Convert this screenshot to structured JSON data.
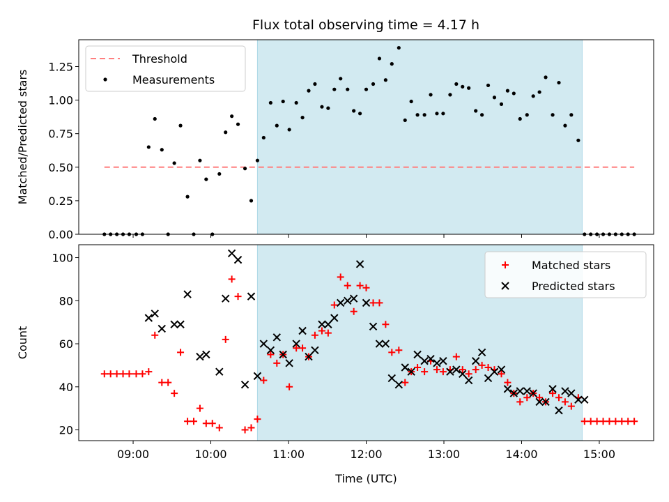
{
  "title": "Flux total observing time = 4.17 h",
  "colors": {
    "threshold": "#ff7f7f",
    "measurement": "#000000",
    "matched": "#ff0000",
    "predicted": "#000000",
    "shade": "#add8e6"
  },
  "chart_data": [
    {
      "type": "scatter",
      "ylabel": "Matched/Predicted stars",
      "xlim_hours": [
        8.3,
        15.7
      ],
      "ylim": [
        0,
        1.45
      ],
      "yticks": [
        0,
        0.25,
        0.5,
        0.75,
        1.0,
        1.25
      ],
      "ytick_labels": [
        "0.00",
        "0.25",
        "0.50",
        "0.75",
        "1.00",
        "1.25"
      ],
      "shaded_span_hours": [
        10.6,
        14.78
      ],
      "legend_position": "top-left",
      "legend": [
        "Threshold",
        "Measurements"
      ],
      "threshold": {
        "value": 0.5,
        "x_hours": [
          8.63,
          15.45
        ]
      },
      "series": [
        {
          "name": "Measurements",
          "x_hours": [
            8.63,
            8.71,
            8.79,
            8.87,
            8.95,
            9.04,
            9.12,
            9.2,
            9.28,
            9.37,
            9.45,
            9.53,
            9.61,
            9.7,
            9.78,
            9.86,
            9.94,
            10.02,
            10.11,
            10.19,
            10.27,
            10.35,
            10.44,
            10.52,
            10.6,
            10.68,
            10.77,
            10.85,
            10.93,
            11.01,
            11.1,
            11.18,
            11.26,
            11.34,
            11.43,
            11.51,
            11.59,
            11.67,
            11.76,
            11.84,
            11.92,
            12.0,
            12.09,
            12.17,
            12.25,
            12.33,
            12.42,
            12.5,
            12.58,
            12.66,
            12.75,
            12.83,
            12.91,
            12.99,
            13.08,
            13.16,
            13.24,
            13.32,
            13.41,
            13.49,
            13.57,
            13.65,
            13.74,
            13.82,
            13.9,
            13.98,
            14.07,
            14.15,
            14.23,
            14.31,
            14.4,
            14.48,
            14.56,
            14.64,
            14.73,
            14.81,
            14.89,
            14.97,
            15.05,
            15.13,
            15.21,
            15.29,
            15.37,
            15.45
          ],
          "values": [
            0,
            0,
            0,
            0,
            0,
            0,
            0,
            0.65,
            0.86,
            0.63,
            0,
            0.53,
            0.81,
            0.28,
            0,
            0.55,
            0.41,
            0,
            0.45,
            0.76,
            0.88,
            0.82,
            0.49,
            0.25,
            0.55,
            0.72,
            0.98,
            0.81,
            0.99,
            0.78,
            0.98,
            0.87,
            1.07,
            1.12,
            0.95,
            0.94,
            1.08,
            1.16,
            1.08,
            0.92,
            0.9,
            1.08,
            1.12,
            1.31,
            1.15,
            1.27,
            1.39,
            0.85,
            0.99,
            0.89,
            0.89,
            1.04,
            0.9,
            0.9,
            1.04,
            1.12,
            1.1,
            1.09,
            0.92,
            0.89,
            1.11,
            1.02,
            0.97,
            1.07,
            1.05,
            0.86,
            0.89,
            1.03,
            1.06,
            1.17,
            0.89,
            1.13,
            0.81,
            0.89,
            0.7,
            0,
            0,
            0,
            0,
            0,
            0,
            0,
            0,
            0
          ]
        }
      ]
    },
    {
      "type": "scatter",
      "ylabel": "Count",
      "xlabel": "Time (UTC)",
      "xlim_hours": [
        8.3,
        15.7
      ],
      "ylim": [
        15,
        106
      ],
      "yticks": [
        20,
        40,
        60,
        80,
        100
      ],
      "xticks_hours": [
        9,
        10,
        11,
        12,
        13,
        14,
        15
      ],
      "xtick_labels": [
        "09:00",
        "10:00",
        "11:00",
        "12:00",
        "13:00",
        "14:00",
        "15:00"
      ],
      "shaded_span_hours": [
        10.6,
        14.78
      ],
      "legend_position": "top-right",
      "legend": [
        "Matched stars",
        "Predicted stars"
      ],
      "series": [
        {
          "name": "Matched stars",
          "x_hours": [
            8.63,
            8.71,
            8.79,
            8.87,
            8.95,
            9.04,
            9.12,
            9.2,
            9.28,
            9.37,
            9.45,
            9.53,
            9.61,
            9.7,
            9.78,
            9.86,
            9.94,
            10.02,
            10.11,
            10.19,
            10.27,
            10.35,
            10.44,
            10.52,
            10.6,
            10.68,
            10.77,
            10.85,
            10.93,
            11.01,
            11.1,
            11.18,
            11.26,
            11.34,
            11.43,
            11.51,
            11.59,
            11.67,
            11.76,
            11.84,
            11.92,
            12.0,
            12.09,
            12.17,
            12.25,
            12.33,
            12.42,
            12.5,
            12.58,
            12.66,
            12.75,
            12.83,
            12.91,
            12.99,
            13.08,
            13.16,
            13.24,
            13.32,
            13.41,
            13.49,
            13.57,
            13.65,
            13.74,
            13.82,
            13.9,
            13.98,
            14.07,
            14.15,
            14.23,
            14.31,
            14.4,
            14.48,
            14.56,
            14.64,
            14.73,
            14.81,
            14.89,
            14.97,
            15.05,
            15.13,
            15.21,
            15.29,
            15.37,
            15.45
          ],
          "values": [
            46,
            46,
            46,
            46,
            46,
            46,
            46,
            47,
            64,
            42,
            42,
            37,
            56,
            24,
            24,
            30,
            23,
            23,
            21,
            62,
            90,
            82,
            20,
            21,
            25,
            43,
            55,
            51,
            55,
            40,
            58,
            58,
            54,
            64,
            66,
            65,
            78,
            91,
            87,
            75,
            87,
            86,
            79,
            79,
            69,
            56,
            57,
            42,
            47,
            49,
            47,
            52,
            48,
            47,
            48,
            54,
            48,
            46,
            48,
            50,
            49,
            48,
            46,
            42,
            37,
            33,
            35,
            37,
            35,
            33,
            37,
            35,
            33,
            31,
            35,
            24,
            24,
            24,
            24,
            24,
            24,
            24,
            24,
            24
          ]
        },
        {
          "name": "Predicted stars",
          "x_hours": [
            9.2,
            9.28,
            9.37,
            9.53,
            9.61,
            9.7,
            9.86,
            9.94,
            10.11,
            10.19,
            10.27,
            10.35,
            10.44,
            10.52,
            10.6,
            10.68,
            10.77,
            10.85,
            10.93,
            11.01,
            11.1,
            11.18,
            11.26,
            11.34,
            11.43,
            11.51,
            11.59,
            11.67,
            11.76,
            11.84,
            11.92,
            12.0,
            12.09,
            12.17,
            12.25,
            12.33,
            12.42,
            12.5,
            12.58,
            12.66,
            12.75,
            12.83,
            12.91,
            12.99,
            13.08,
            13.16,
            13.24,
            13.32,
            13.41,
            13.49,
            13.57,
            13.65,
            13.74,
            13.82,
            13.9,
            13.98,
            14.07,
            14.15,
            14.23,
            14.31,
            14.4,
            14.48,
            14.56,
            14.64,
            14.73,
            14.81
          ],
          "values": [
            72,
            74,
            67,
            69,
            69,
            83,
            54,
            55,
            47,
            81,
            102,
            99,
            41,
            82,
            45,
            60,
            57,
            63,
            55,
            51,
            60,
            66,
            54,
            57,
            69,
            69,
            72,
            79,
            80,
            81,
            97,
            79,
            68,
            60,
            60,
            44,
            41,
            49,
            47,
            55,
            52,
            53,
            51,
            52,
            47,
            48,
            46,
            43,
            52,
            56,
            44,
            47,
            48,
            39,
            37,
            38,
            38,
            37,
            33,
            33,
            39,
            29,
            38,
            37,
            34,
            34
          ]
        }
      ]
    }
  ]
}
